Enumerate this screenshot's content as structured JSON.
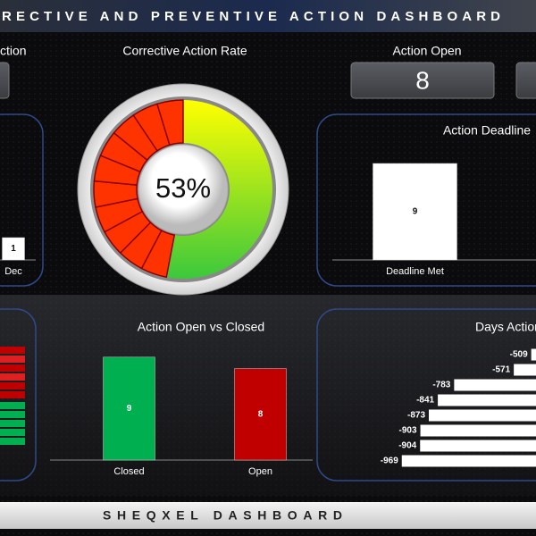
{
  "header": {
    "title": "RECTIVE AND PREVENTIVE ACTION DASHBOARD"
  },
  "footer": {
    "title": "SHEQXEL DASHBOARD"
  },
  "cards": [
    {
      "label": "ction"
    },
    {
      "label": "Action Open",
      "value": 8
    }
  ],
  "chart_data": [
    {
      "type": "gauge",
      "title": "Corrective Action Rate",
      "value": 53,
      "value_label": "53%",
      "ylim": [
        0,
        100
      ],
      "color": "#3cc83c",
      "rest_color": "#ff3300"
    },
    {
      "type": "bar",
      "categories": [
        "Dec"
      ],
      "values": [
        1
      ],
      "colors": [
        "#ffffff"
      ],
      "ylim": [
        0,
        6
      ]
    },
    {
      "type": "bar",
      "title": "Action Deadline",
      "categories": [
        "Deadline Met"
      ],
      "values": [
        9
      ],
      "colors": [
        "#ffffff"
      ],
      "ylim": [
        0,
        10
      ]
    },
    {
      "type": "bar",
      "title": "Action Open vs Closed",
      "categories": [
        "Closed",
        "Open"
      ],
      "values": [
        9,
        8
      ],
      "colors": [
        "#00b050",
        "#c00000"
      ],
      "ylim": [
        0,
        10
      ]
    },
    {
      "type": "hbar",
      "title": "Days Action is Due or",
      "values": [
        -509,
        -571,
        -783,
        -841,
        -873,
        -903,
        -904,
        -969
      ],
      "color": "#ffffff",
      "xlim": [
        -1000,
        0
      ]
    }
  ]
}
